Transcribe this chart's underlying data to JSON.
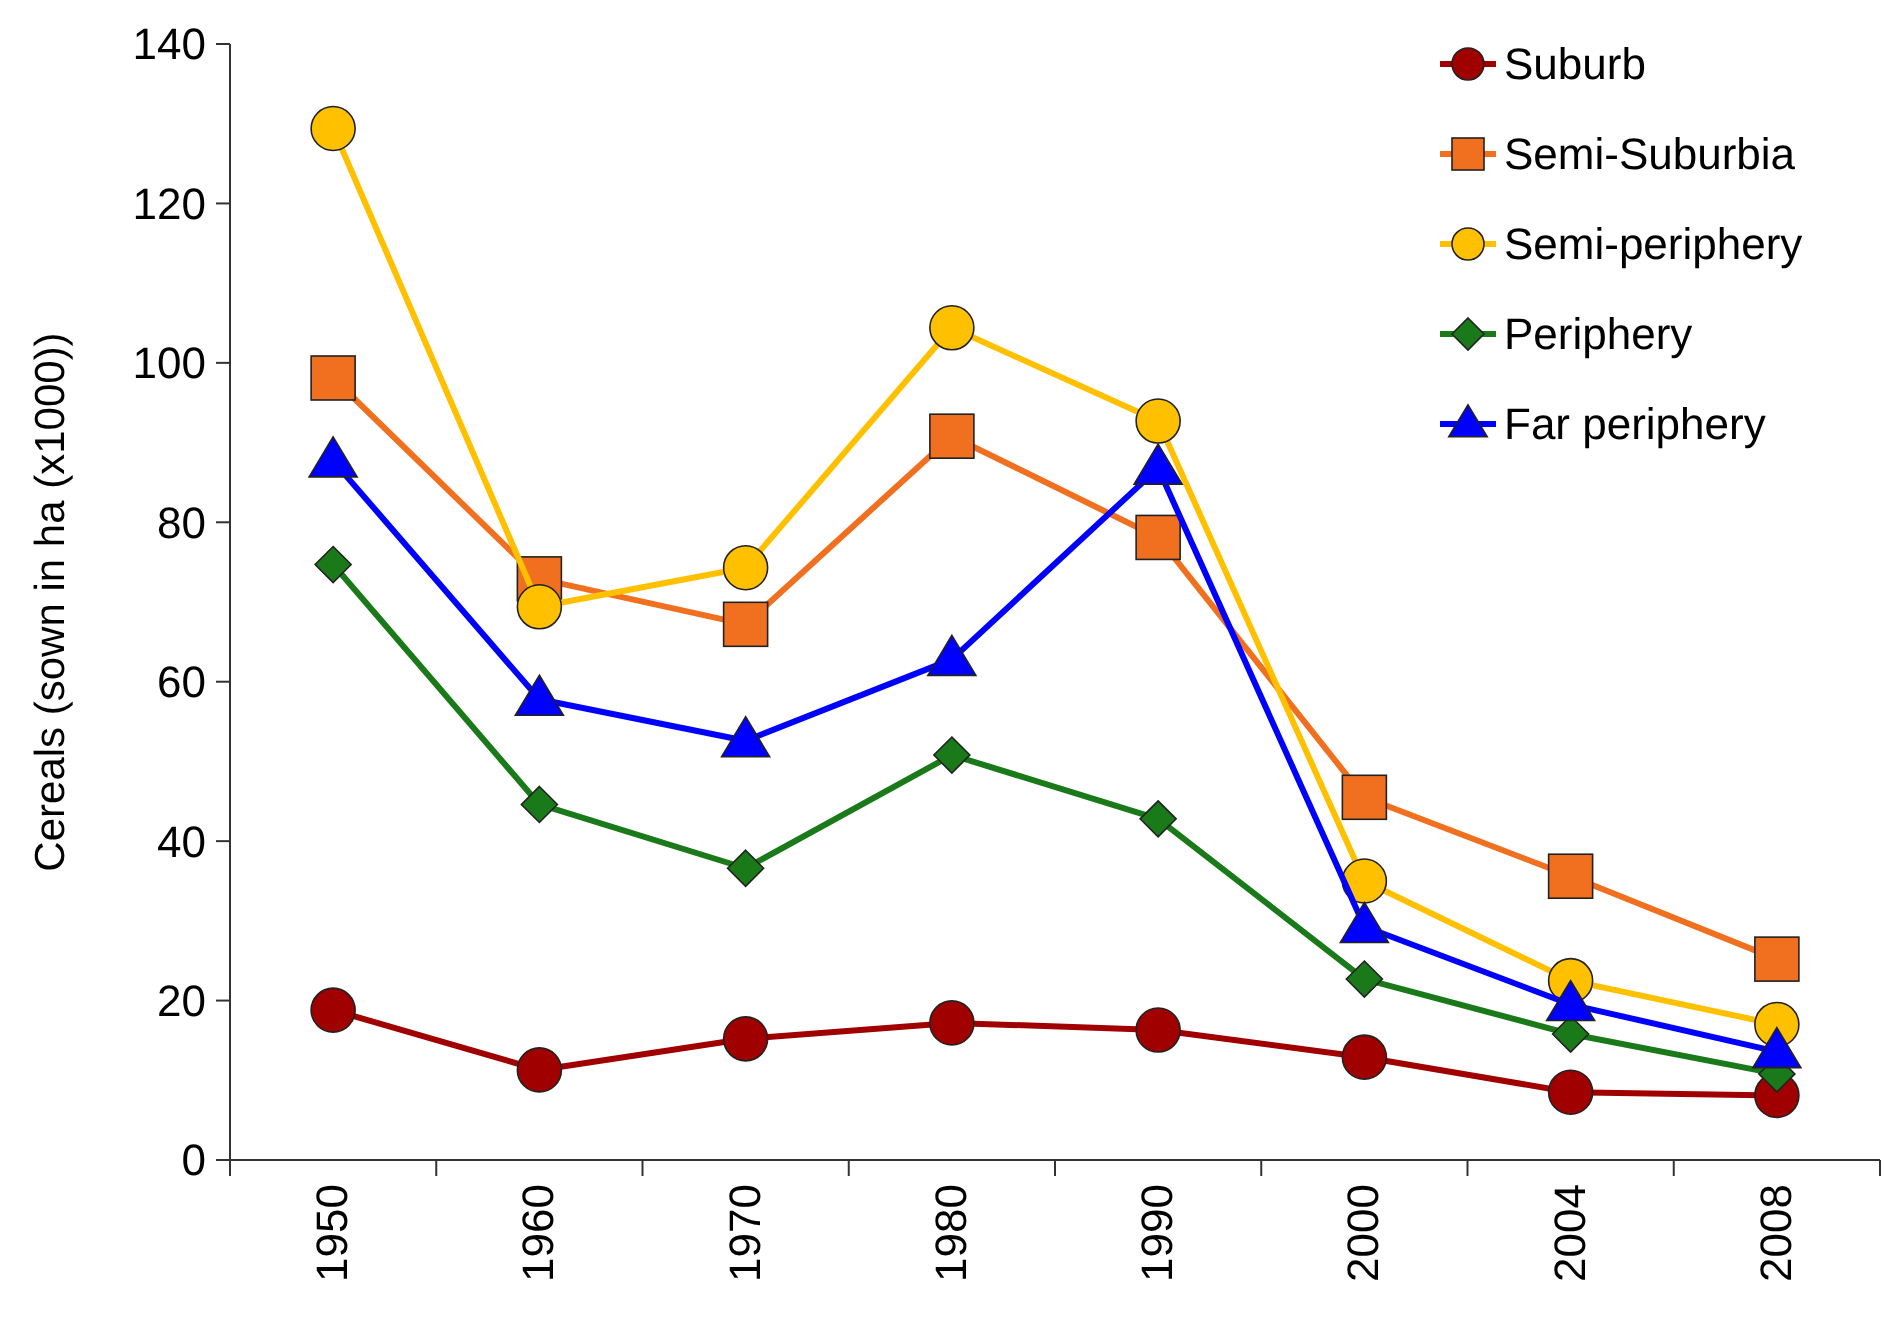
{
  "chart_data": {
    "type": "line",
    "ylabel": "Cereals (sown in ha (x1000))",
    "categories": [
      "1950",
      "1960",
      "1970",
      "1980",
      "1990",
      "2000",
      "2004",
      "2008"
    ],
    "ylim": [
      0,
      140
    ],
    "yticks": [
      0,
      20,
      40,
      60,
      80,
      100,
      120,
      140
    ],
    "grid": false,
    "legend": "top right",
    "series": [
      {
        "name": "Suburb",
        "color": "#a00000",
        "marker": "circle",
        "values": [
          18.8,
          11.3,
          15.2,
          17.2,
          16.3,
          12.9,
          8.5,
          8.1
        ]
      },
      {
        "name": "Semi-Suburbia",
        "color": "#f07020",
        "marker": "square",
        "values": [
          98.1,
          72.9,
          67.2,
          90.8,
          78.1,
          45.5,
          35.6,
          25.2
        ]
      },
      {
        "name": "Semi-periphery",
        "color": "#ffc000",
        "marker": "circle",
        "values": [
          129.4,
          69.4,
          74.3,
          104.4,
          92.7,
          35.0,
          22.5,
          17.0
        ]
      },
      {
        "name": "Periphery",
        "color": "#1a7a1a",
        "marker": "diamond",
        "values": [
          74.7,
          44.6,
          36.6,
          50.8,
          42.8,
          22.7,
          15.8,
          10.8
        ]
      },
      {
        "name": "Far periphery",
        "color": "#0000ff",
        "marker": "triangle",
        "values": [
          87.7,
          57.8,
          52.6,
          62.8,
          86.8,
          29.3,
          19.5,
          13.6
        ]
      }
    ]
  }
}
